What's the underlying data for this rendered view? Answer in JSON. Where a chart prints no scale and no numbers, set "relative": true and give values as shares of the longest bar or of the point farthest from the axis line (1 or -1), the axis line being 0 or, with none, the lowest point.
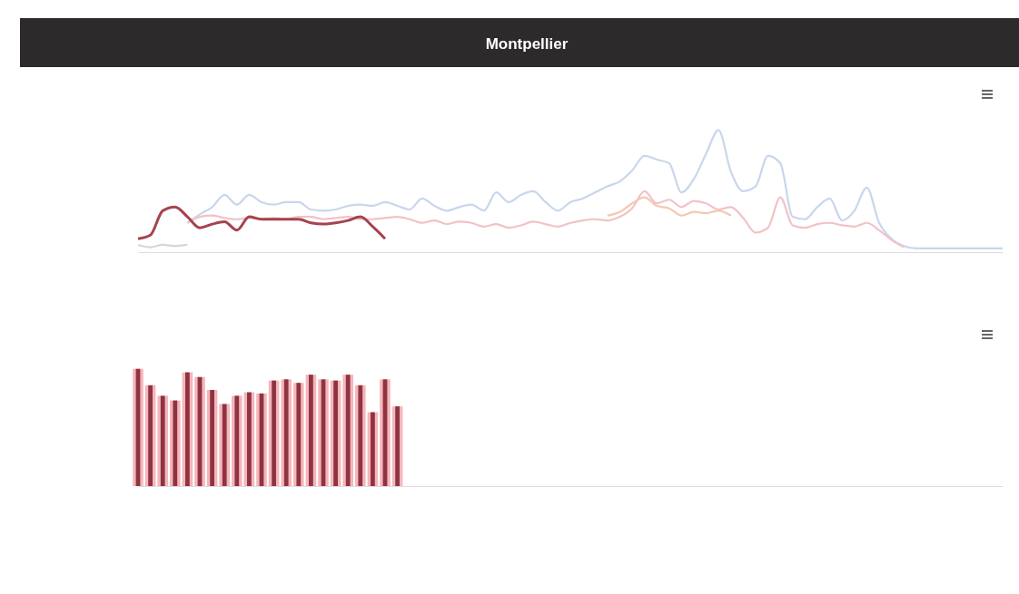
{
  "chart_data": [
    {
      "type": "line",
      "title": "Montpellier",
      "relative": true,
      "legend": false,
      "marker": "none",
      "line_style": "solid",
      "categories": [
        null,
        null,
        null,
        null,
        null,
        null,
        null,
        null,
        null,
        null,
        null,
        null,
        null,
        null,
        null,
        null,
        null,
        null,
        null,
        null,
        null,
        null,
        null,
        null,
        null,
        null,
        null,
        null,
        null,
        null,
        null,
        null,
        null,
        null,
        null,
        null,
        null,
        null,
        null,
        null,
        null,
        null,
        null,
        null,
        null,
        null,
        null,
        null,
        null,
        null,
        null,
        null,
        null,
        null,
        null,
        null,
        null,
        null,
        null,
        null,
        null,
        null,
        null,
        null,
        null,
        null,
        null,
        null,
        null,
        null,
        null
      ],
      "series": [
        {
          "color": "#c9d6ec",
          "values": [
            null,
            null,
            null,
            null,
            0.24,
            0.31,
            0.37,
            0.47,
            0.39,
            0.47,
            0.41,
            0.39,
            0.41,
            0.41,
            0.35,
            0.34,
            0.35,
            0.38,
            0.39,
            0.38,
            0.41,
            0.38,
            0.35,
            0.44,
            0.38,
            0.34,
            0.37,
            0.39,
            0.34,
            0.49,
            0.41,
            0.47,
            0.5,
            0.41,
            0.34,
            0.41,
            0.44,
            0.49,
            0.54,
            0.58,
            0.67,
            0.79,
            0.76,
            0.73,
            0.49,
            0.6,
            0.81,
            1,
            0.66,
            0.5,
            0.54,
            0.79,
            0.73,
            0.29,
            0.27,
            0.37,
            0.44,
            0.26,
            0.34,
            0.53,
            0.24,
            0.11,
            0.05,
            0.03,
            0.03,
            0.03,
            0.03,
            0.03,
            0.03,
            0.03,
            0.03
          ]
        },
        {
          "color": "#f2c2c6",
          "values": [
            null,
            null,
            null,
            null,
            0.24,
            0.29,
            0.3,
            0.28,
            0.27,
            0.28,
            0.27,
            0.28,
            0.27,
            0.29,
            0.29,
            0.27,
            0.28,
            0.29,
            0.27,
            0.27,
            0.28,
            0.29,
            0.27,
            0.24,
            0.26,
            0.23,
            0.25,
            0.24,
            0.21,
            0.23,
            0.2,
            0.22,
            0.25,
            0.23,
            0.21,
            0.24,
            0.26,
            0.27,
            0.26,
            0.29,
            0.36,
            0.5,
            0.4,
            0.43,
            0.37,
            0.42,
            0.4,
            0.35,
            0.37,
            0.28,
            0.16,
            0.2,
            0.45,
            0.22,
            0.2,
            0.23,
            0.24,
            0.22,
            0.21,
            0.24,
            0.18,
            0.1,
            0.04,
            null,
            null,
            null,
            null,
            null,
            null,
            null,
            null
          ]
        },
        {
          "color": "#d4d8d4",
          "values": [
            0.06,
            0.04,
            0.06,
            0.05,
            0.06,
            null,
            null,
            null,
            null,
            null,
            null,
            null,
            null,
            null,
            null,
            null,
            null,
            null,
            null,
            null,
            null,
            null,
            null,
            null,
            null,
            null,
            null,
            null,
            null,
            null,
            null,
            null,
            null,
            null,
            null,
            null,
            null,
            null,
            null,
            null,
            null,
            null,
            null,
            null,
            null,
            null,
            null,
            null,
            null,
            null,
            null,
            null,
            null,
            null,
            null,
            null,
            null,
            null,
            null,
            null,
            null,
            null,
            null,
            null,
            null,
            null,
            null,
            null,
            null,
            null,
            null
          ]
        },
        {
          "color": "#f4c8b4",
          "values": [
            null,
            null,
            null,
            null,
            null,
            null,
            null,
            null,
            null,
            null,
            null,
            null,
            null,
            null,
            null,
            null,
            null,
            null,
            null,
            null,
            null,
            null,
            null,
            null,
            null,
            null,
            null,
            null,
            null,
            null,
            null,
            null,
            null,
            null,
            null,
            null,
            null,
            null,
            0.3,
            0.33,
            0.4,
            0.45,
            0.38,
            0.36,
            0.3,
            0.33,
            0.32,
            0.34,
            0.3,
            null,
            null,
            null,
            null,
            null,
            null,
            null,
            null,
            null,
            null,
            null,
            null,
            null,
            null,
            null,
            null,
            null,
            null,
            null,
            null,
            null,
            null
          ]
        },
        {
          "color": "#a5434f",
          "values": [
            0.11,
            0.14,
            0.34,
            0.37,
            0.29,
            0.2,
            0.23,
            0.25,
            0.18,
            0.29,
            0.27,
            0.27,
            0.27,
            0.27,
            0.24,
            0.23,
            0.24,
            0.26,
            0.29,
            0.21,
            0.11,
            null,
            null,
            null,
            null,
            null,
            null,
            null,
            null,
            null,
            null,
            null,
            null,
            null,
            null,
            null,
            null,
            null,
            null,
            null,
            null,
            null,
            null,
            null,
            null,
            null,
            null,
            null,
            null,
            null,
            null,
            null,
            null,
            null,
            null,
            null,
            null,
            null,
            null,
            null,
            null,
            null,
            null,
            null,
            null,
            null,
            null,
            null,
            null,
            null,
            null
          ]
        }
      ]
    },
    {
      "type": "bar",
      "relative": true,
      "legend": false,
      "categories": [
        null,
        null,
        null,
        null,
        null,
        null,
        null,
        null,
        null,
        null,
        null,
        null,
        null,
        null,
        null,
        null,
        null,
        null,
        null,
        null,
        null,
        null,
        null,
        null,
        null,
        null,
        null,
        null,
        null,
        null,
        null,
        null,
        null,
        null,
        null,
        null,
        null,
        null,
        null,
        null,
        null,
        null,
        null,
        null,
        null,
        null,
        null,
        null,
        null,
        null,
        null,
        null,
        null,
        null,
        null,
        null,
        null,
        null,
        null,
        null,
        null,
        null,
        null,
        null,
        null,
        null,
        null,
        null,
        null,
        null,
        null
      ],
      "series": [
        {
          "color": "#f5b5bb",
          "values": [
            1,
            0.86,
            0.77,
            0.73,
            0.97,
            0.93,
            0.82,
            0.7,
            0.77,
            0.8,
            0.79,
            0.9,
            0.91,
            0.88,
            0.95,
            0.91,
            0.9,
            0.95,
            0.86,
            0.63,
            0.91,
            0.68,
            null,
            null,
            null,
            null,
            null,
            null,
            null,
            null,
            null,
            null,
            null,
            null,
            null,
            null,
            null,
            null,
            null,
            null,
            null,
            null,
            null,
            null,
            null,
            null,
            null,
            null,
            null,
            null,
            null,
            null,
            null,
            null,
            null,
            null,
            null,
            null,
            null,
            null,
            null,
            null,
            null,
            null,
            null,
            null,
            null,
            null,
            null,
            null,
            null
          ]
        },
        {
          "color": "#8e3440",
          "values": [
            1,
            0.86,
            0.77,
            0.73,
            0.97,
            0.93,
            0.82,
            0.7,
            0.77,
            0.8,
            0.79,
            0.9,
            0.91,
            0.88,
            0.95,
            0.91,
            0.9,
            0.95,
            0.86,
            0.63,
            0.91,
            0.68,
            null,
            null,
            null,
            null,
            null,
            null,
            null,
            null,
            null,
            null,
            null,
            null,
            null,
            null,
            null,
            null,
            null,
            null,
            null,
            null,
            null,
            null,
            null,
            null,
            null,
            null,
            null,
            null,
            null,
            null,
            null,
            null,
            null,
            null,
            null,
            null,
            null,
            null,
            null,
            null,
            null,
            null,
            null,
            null,
            null,
            null,
            null,
            null,
            null
          ]
        }
      ]
    }
  ]
}
